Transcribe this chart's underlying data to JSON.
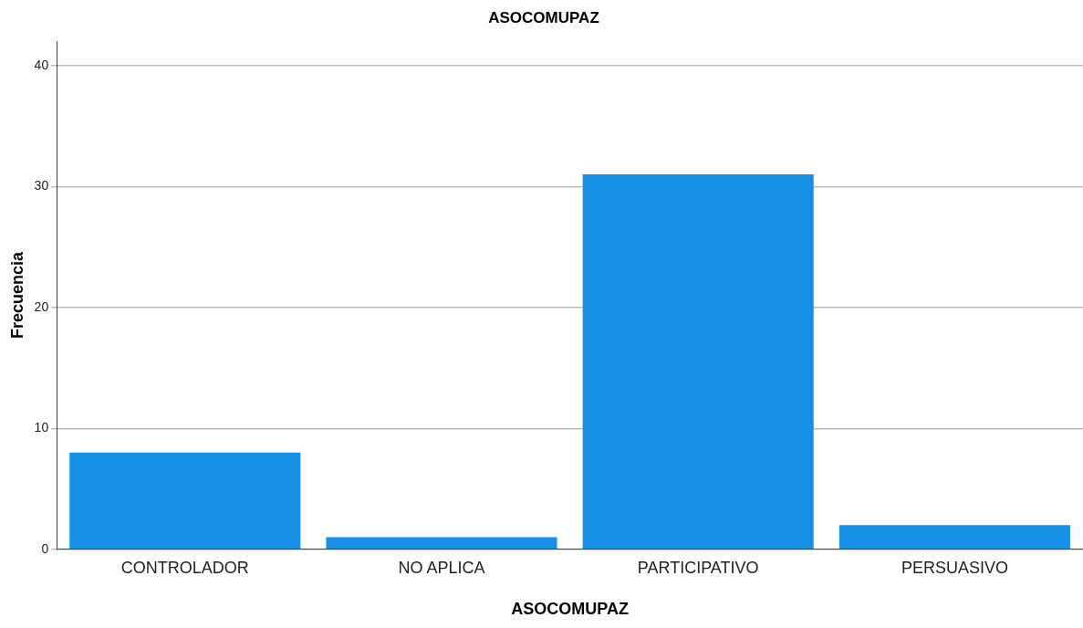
{
  "chart_data": {
    "type": "bar",
    "title": "ASOCOMUPAZ",
    "xlabel": "ASOCOMUPAZ",
    "ylabel": "Frecuencia",
    "categories": [
      "CONTROLADOR",
      "NO APLICA",
      "PARTICIPATIVO",
      "PERSUASIVO"
    ],
    "values": [
      8,
      1,
      31,
      2
    ],
    "color": "#1790e6",
    "ylim": [
      0,
      42
    ],
    "yticks": [
      0,
      10,
      20,
      30,
      40
    ],
    "grid": "y"
  }
}
